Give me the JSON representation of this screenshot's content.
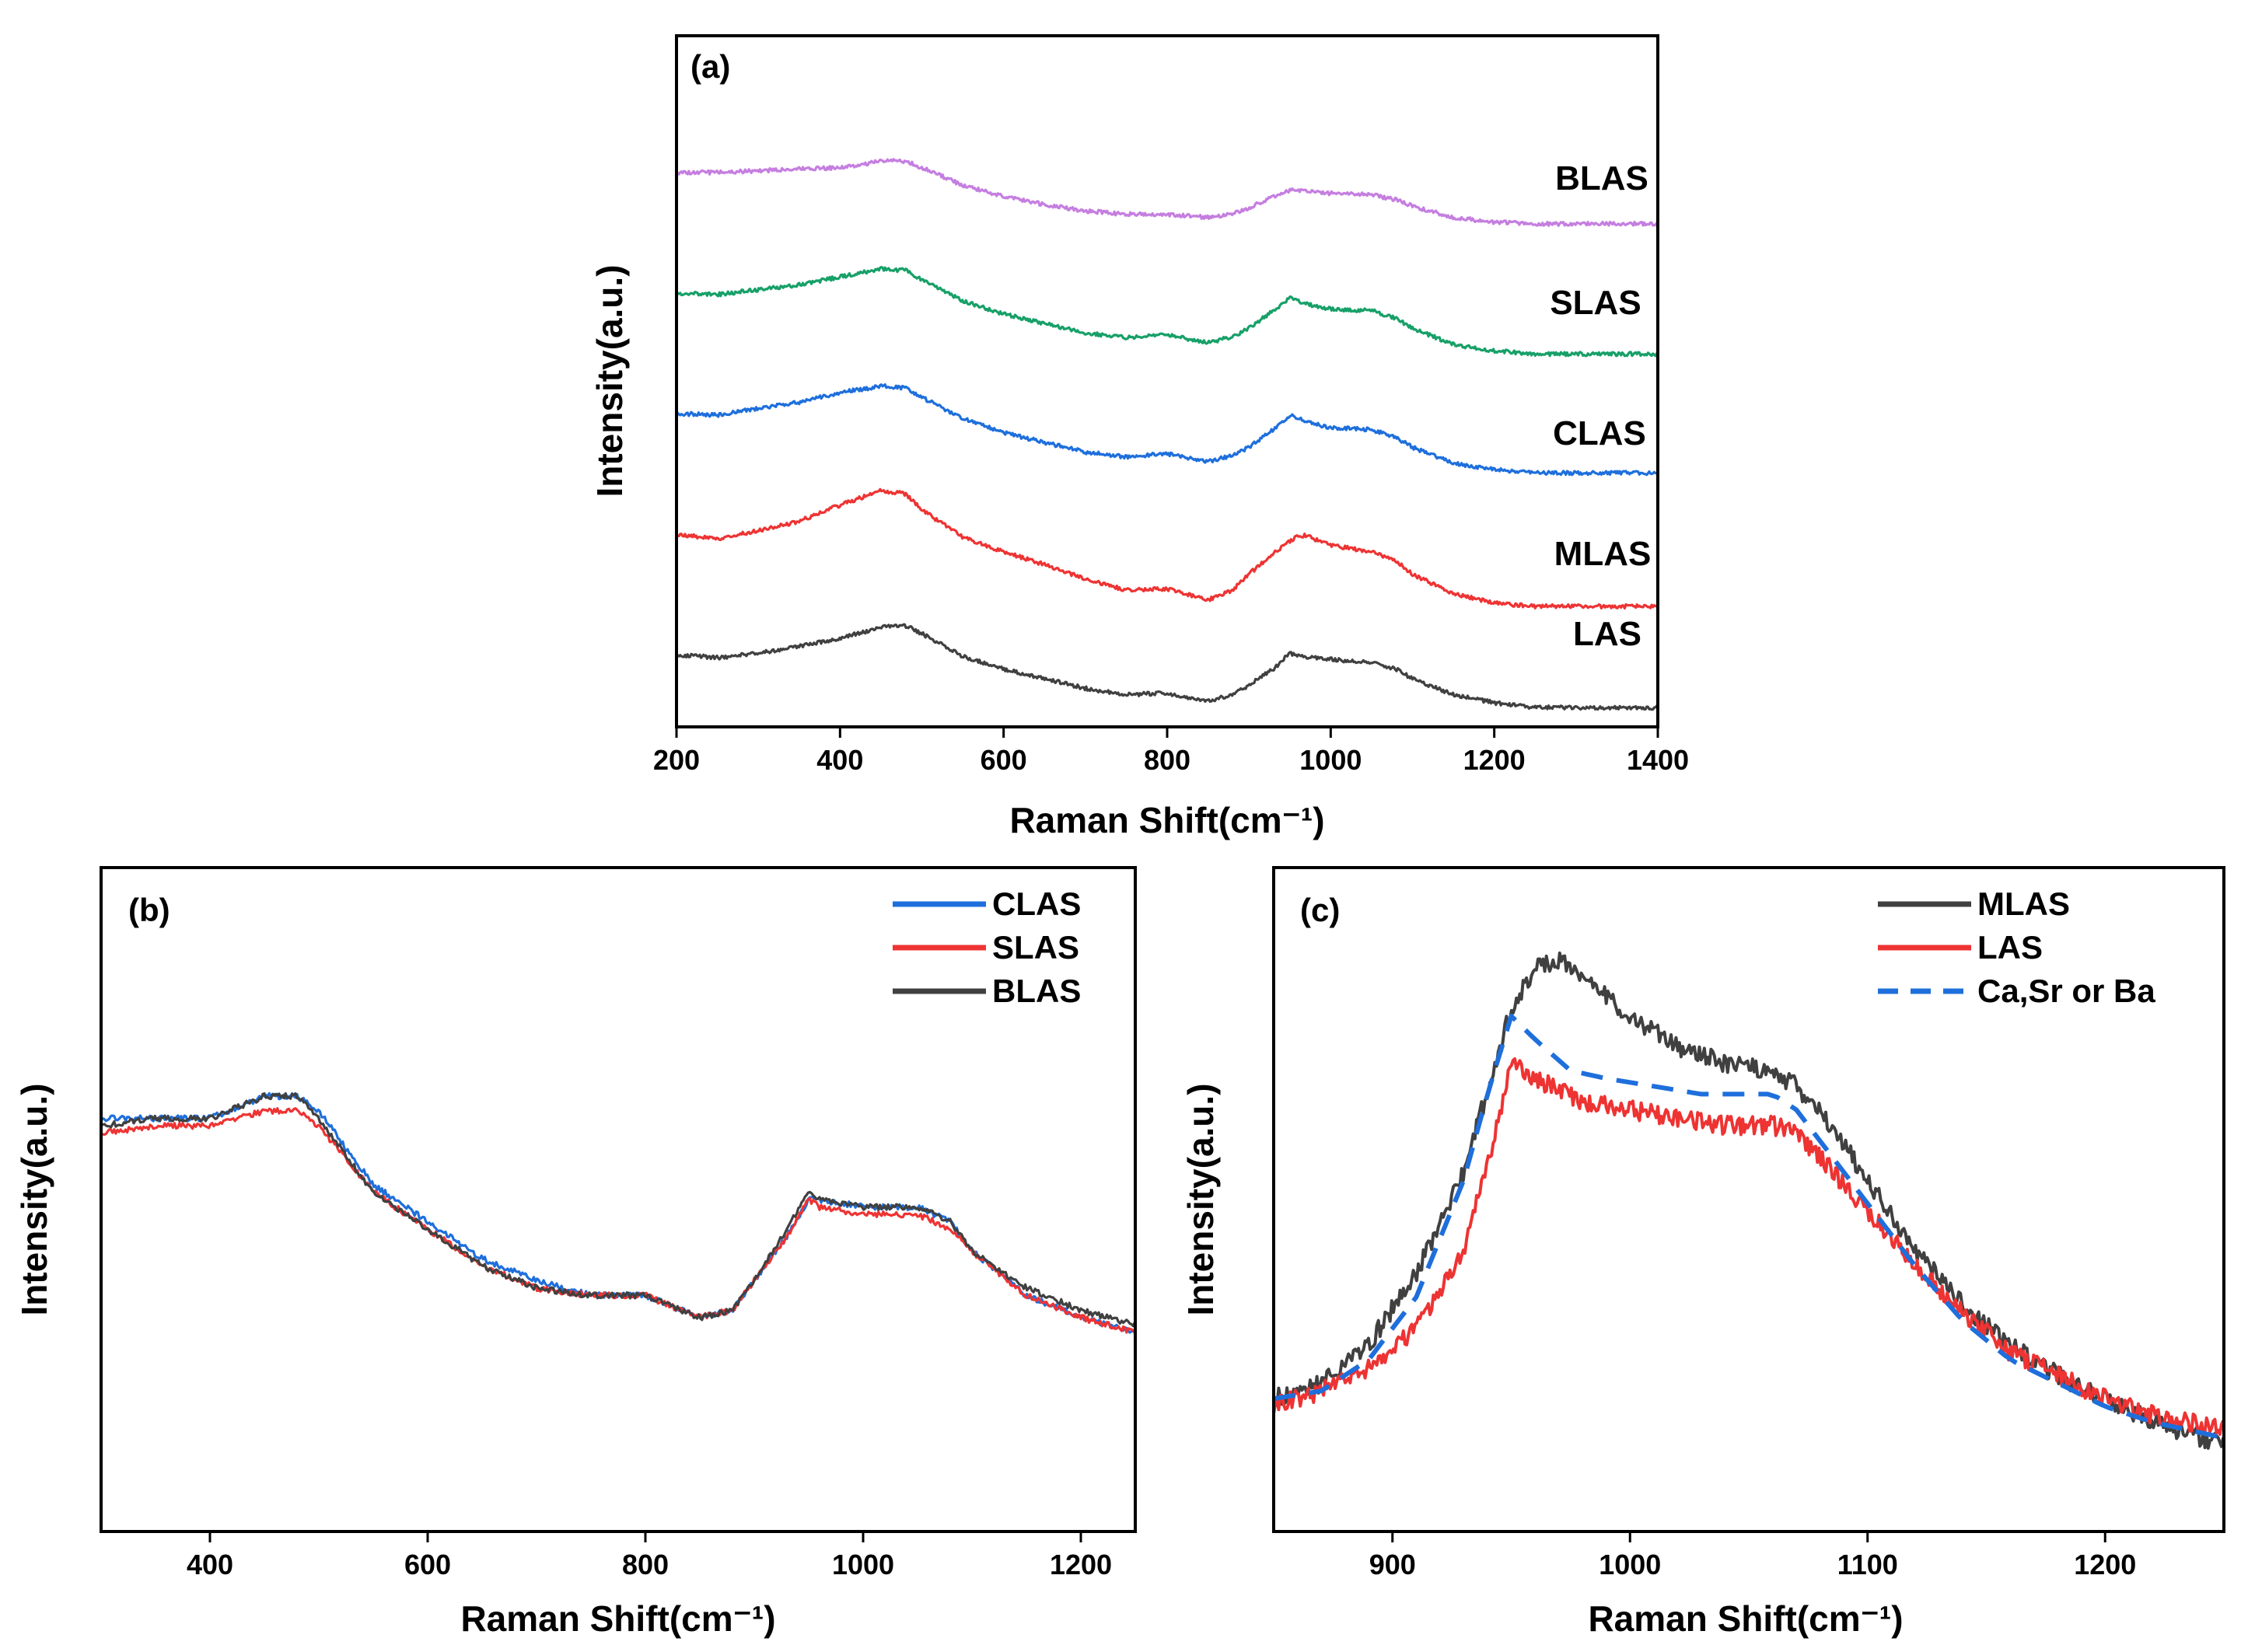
{
  "chart_data": [
    {
      "id": "a",
      "type": "line",
      "panel_label": "(a)",
      "xlabel": "Raman Shift(cm⁻¹)",
      "ylabel": "Intensity(a.u.)",
      "xlim": [
        200,
        1400
      ],
      "xticks": [
        200,
        400,
        600,
        800,
        1000,
        1200,
        1400
      ],
      "y_ticks_shown": false,
      "stacked_offsets": true,
      "series": [
        {
          "name": "LAS",
          "color": "#404040",
          "offset": 0.0,
          "x": [
            200,
            250,
            300,
            350,
            400,
            450,
            480,
            500,
            550,
            600,
            650,
            700,
            750,
            800,
            850,
            880,
            900,
            930,
            950,
            960,
            1000,
            1050,
            1080,
            1100,
            1150,
            1200,
            1250,
            1300,
            1400
          ],
          "y": [
            0.45,
            0.43,
            0.46,
            0.5,
            0.55,
            0.62,
            0.63,
            0.58,
            0.44,
            0.36,
            0.3,
            0.24,
            0.2,
            0.21,
            0.16,
            0.2,
            0.26,
            0.36,
            0.46,
            0.44,
            0.42,
            0.4,
            0.36,
            0.3,
            0.2,
            0.15,
            0.12,
            0.12,
            0.12
          ]
        },
        {
          "name": "MLAS",
          "color": "#ee3333",
          "offset": 0.75,
          "x": [
            200,
            250,
            300,
            350,
            400,
            450,
            480,
            500,
            550,
            600,
            650,
            700,
            750,
            800,
            850,
            880,
            900,
            930,
            960,
            970,
            1000,
            1050,
            1080,
            1100,
            1150,
            1200,
            1250,
            1300,
            1400
          ],
          "y": [
            0.45,
            0.42,
            0.47,
            0.53,
            0.63,
            0.72,
            0.7,
            0.6,
            0.43,
            0.34,
            0.26,
            0.17,
            0.1,
            0.11,
            0.04,
            0.1,
            0.2,
            0.33,
            0.44,
            0.44,
            0.38,
            0.34,
            0.28,
            0.2,
            0.08,
            0.02,
            0.0,
            0.0,
            0.0
          ]
        },
        {
          "name": "CLAS",
          "color": "#1e6fdc",
          "offset": 1.5,
          "x": [
            200,
            250,
            300,
            350,
            400,
            450,
            480,
            500,
            550,
            600,
            650,
            700,
            750,
            800,
            850,
            880,
            900,
            930,
            950,
            970,
            1000,
            1050,
            1080,
            1100,
            1150,
            1200,
            1250,
            1300,
            1400
          ],
          "y": [
            0.45,
            0.44,
            0.48,
            0.52,
            0.58,
            0.62,
            0.61,
            0.55,
            0.42,
            0.33,
            0.27,
            0.21,
            0.18,
            0.2,
            0.15,
            0.19,
            0.24,
            0.35,
            0.44,
            0.4,
            0.36,
            0.35,
            0.3,
            0.24,
            0.14,
            0.1,
            0.08,
            0.08,
            0.08
          ]
        },
        {
          "name": "SLAS",
          "color": "#17a068",
          "offset": 2.25,
          "x": [
            200,
            250,
            300,
            350,
            400,
            450,
            480,
            500,
            550,
            600,
            650,
            700,
            750,
            800,
            850,
            880,
            900,
            930,
            950,
            970,
            1000,
            1050,
            1080,
            1100,
            1150,
            1200,
            1250,
            1300,
            1400
          ],
          "y": [
            0.45,
            0.44,
            0.47,
            0.5,
            0.55,
            0.6,
            0.59,
            0.53,
            0.4,
            0.32,
            0.26,
            0.2,
            0.17,
            0.19,
            0.14,
            0.18,
            0.23,
            0.34,
            0.42,
            0.38,
            0.35,
            0.34,
            0.29,
            0.23,
            0.13,
            0.09,
            0.07,
            0.07,
            0.07
          ]
        },
        {
          "name": "BLAS",
          "color": "#c57ee0",
          "offset": 3.0,
          "x": [
            200,
            250,
            300,
            350,
            400,
            450,
            480,
            500,
            550,
            600,
            650,
            700,
            750,
            800,
            850,
            880,
            900,
            930,
            950,
            970,
            1000,
            1050,
            1080,
            1100,
            1150,
            1200,
            1250,
            1300,
            1400
          ],
          "y": [
            0.45,
            0.45,
            0.46,
            0.47,
            0.48,
            0.52,
            0.52,
            0.48,
            0.37,
            0.3,
            0.25,
            0.21,
            0.19,
            0.19,
            0.17,
            0.19,
            0.23,
            0.3,
            0.34,
            0.33,
            0.32,
            0.31,
            0.28,
            0.24,
            0.17,
            0.14,
            0.13,
            0.13,
            0.13
          ]
        }
      ],
      "annotations": [
        "BLAS",
        "SLAS",
        "CLAS",
        "MLAS",
        "LAS"
      ]
    },
    {
      "id": "b",
      "type": "line",
      "panel_label": "(b)",
      "xlabel": "Raman Shift(cm⁻¹)",
      "ylabel": "Intensity(a.u.)",
      "xlim": [
        300,
        1250
      ],
      "xticks": [
        400,
        600,
        800,
        1000,
        1200
      ],
      "y_ticks_shown": false,
      "legend": "top-right",
      "series": [
        {
          "name": "CLAS",
          "color": "#1e6fdc",
          "x": [
            300,
            350,
            400,
            450,
            480,
            500,
            550,
            600,
            650,
            700,
            750,
            800,
            850,
            880,
            900,
            930,
            950,
            960,
            1000,
            1050,
            1080,
            1100,
            1150,
            1200,
            1250
          ],
          "y": [
            0.66,
            0.66,
            0.66,
            0.69,
            0.69,
            0.67,
            0.57,
            0.52,
            0.47,
            0.44,
            0.42,
            0.42,
            0.39,
            0.4,
            0.44,
            0.5,
            0.55,
            0.55,
            0.54,
            0.54,
            0.52,
            0.48,
            0.42,
            0.39,
            0.37
          ]
        },
        {
          "name": "SLAS",
          "color": "#ee3333",
          "x": [
            300,
            350,
            400,
            450,
            480,
            500,
            550,
            600,
            650,
            700,
            750,
            800,
            850,
            880,
            900,
            930,
            950,
            960,
            1000,
            1050,
            1080,
            1100,
            1150,
            1200,
            1250
          ],
          "y": [
            0.64,
            0.65,
            0.65,
            0.67,
            0.67,
            0.65,
            0.56,
            0.51,
            0.46,
            0.43,
            0.42,
            0.42,
            0.39,
            0.4,
            0.44,
            0.5,
            0.55,
            0.54,
            0.53,
            0.53,
            0.51,
            0.48,
            0.42,
            0.39,
            0.37
          ]
        },
        {
          "name": "BLAS",
          "color": "#404040",
          "x": [
            300,
            350,
            400,
            450,
            480,
            500,
            550,
            600,
            650,
            700,
            750,
            800,
            850,
            880,
            900,
            930,
            950,
            960,
            1000,
            1050,
            1080,
            1100,
            1150,
            1200,
            1250
          ],
          "y": [
            0.65,
            0.66,
            0.66,
            0.69,
            0.69,
            0.66,
            0.56,
            0.51,
            0.46,
            0.43,
            0.42,
            0.42,
            0.39,
            0.4,
            0.44,
            0.51,
            0.56,
            0.55,
            0.54,
            0.54,
            0.52,
            0.48,
            0.43,
            0.4,
            0.38
          ]
        }
      ]
    },
    {
      "id": "c",
      "type": "line",
      "panel_label": "(c)",
      "xlabel": "Raman Shift(cm⁻¹)",
      "ylabel": "Intensity(a.u.)",
      "xlim": [
        850,
        1250
      ],
      "xticks": [
        900,
        1000,
        1100,
        1200
      ],
      "y_ticks_shown": false,
      "legend": "top-right",
      "series": [
        {
          "name": "MLAS",
          "color": "#404040",
          "dash": "solid",
          "x": [
            850,
            870,
            890,
            910,
            930,
            950,
            960,
            970,
            980,
            1000,
            1020,
            1040,
            1060,
            1070,
            1080,
            1100,
            1120,
            1140,
            1160,
            1180,
            1200,
            1220,
            1250
          ],
          "y": [
            0.17,
            0.19,
            0.24,
            0.33,
            0.46,
            0.67,
            0.72,
            0.73,
            0.71,
            0.66,
            0.62,
            0.6,
            0.59,
            0.57,
            0.54,
            0.45,
            0.36,
            0.29,
            0.24,
            0.2,
            0.17,
            0.14,
            0.11
          ]
        },
        {
          "name": "LAS",
          "color": "#ee3333",
          "dash": "solid",
          "x": [
            850,
            870,
            890,
            910,
            930,
            940,
            950,
            960,
            980,
            1000,
            1020,
            1040,
            1060,
            1070,
            1080,
            1100,
            1120,
            1140,
            1160,
            1180,
            1200,
            1220,
            1250
          ],
          "y": [
            0.16,
            0.18,
            0.21,
            0.26,
            0.36,
            0.47,
            0.6,
            0.58,
            0.55,
            0.54,
            0.53,
            0.52,
            0.52,
            0.51,
            0.48,
            0.41,
            0.34,
            0.28,
            0.23,
            0.2,
            0.17,
            0.15,
            0.13
          ]
        },
        {
          "name": "Ca,Sr or Ba",
          "color": "#1e6fdc",
          "dash": "dashed",
          "x": [
            850,
            870,
            890,
            910,
            930,
            940,
            950,
            960,
            975,
            990,
            1010,
            1030,
            1050,
            1060,
            1070,
            1080,
            1100,
            1120,
            1140,
            1160,
            1180,
            1200,
            1220,
            1250
          ],
          "y": [
            0.17,
            0.18,
            0.22,
            0.3,
            0.45,
            0.56,
            0.66,
            0.63,
            0.59,
            0.58,
            0.57,
            0.56,
            0.56,
            0.56,
            0.54,
            0.5,
            0.42,
            0.34,
            0.27,
            0.22,
            0.19,
            0.16,
            0.14,
            0.12
          ]
        }
      ]
    }
  ]
}
